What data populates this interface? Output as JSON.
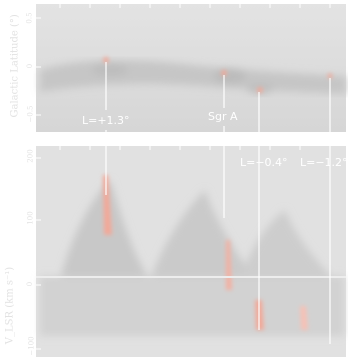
{
  "colors": {
    "panel_bg": "#dedede",
    "emission_gray": "#c6c6c6",
    "emission_red": "#f2a898",
    "axis_text": "#e2e2e2",
    "callout_line": "#ffffff"
  },
  "top_panel": {
    "ylabel": "Galactic Latitude (°)",
    "yticks": [
      "0.5",
      "0",
      "−0.5"
    ]
  },
  "bottom_panel": {
    "ylabel": "V_LSR (km s⁻¹)",
    "yticks": [
      "200",
      "100",
      "0",
      "−100"
    ]
  },
  "callouts": {
    "l_pos_1_3": "L=+1.3°",
    "sgr_a": "Sgr A",
    "l_neg_0_4": "L=−0.4°",
    "l_neg_1_2": "L=−1.2°"
  }
}
